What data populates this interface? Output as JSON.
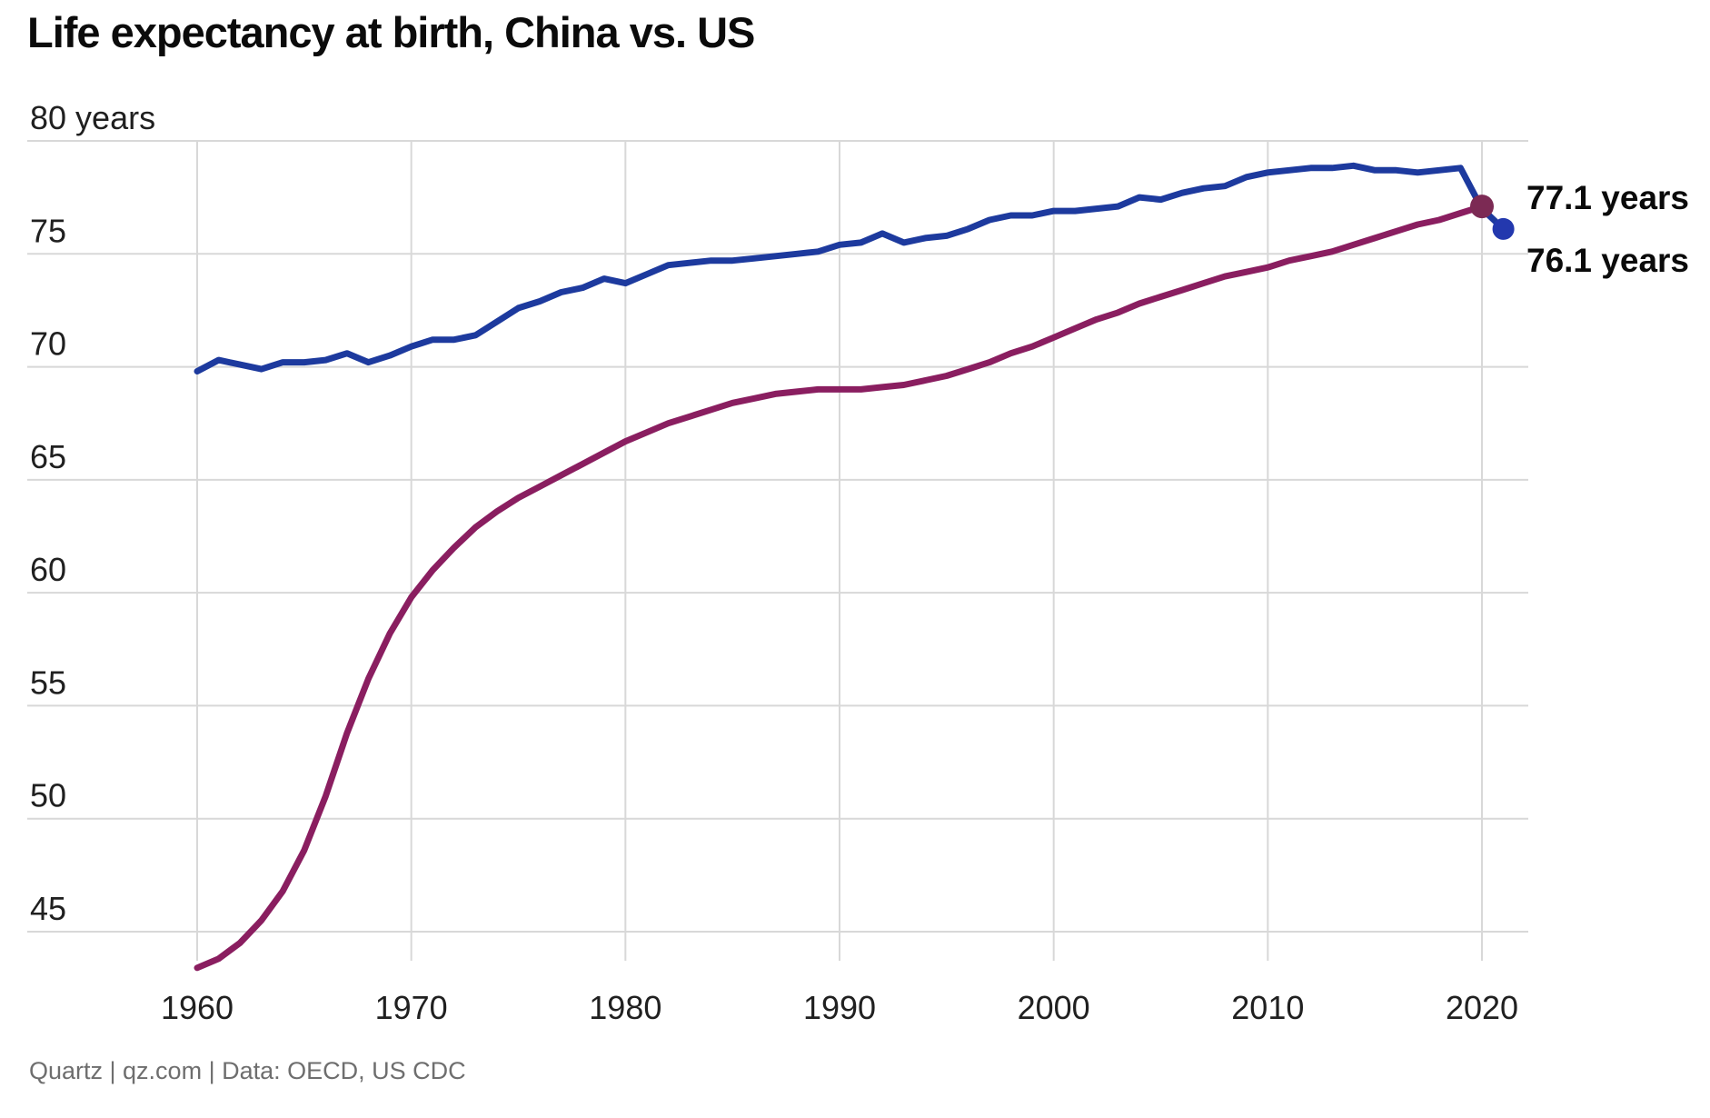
{
  "title": "Life expectancy at birth, China vs. US",
  "footer": "Quartz | qz.com | Data: OECD, US CDC",
  "colors": {
    "background": "#ffffff",
    "gridline": "#d8d8d8",
    "title_text": "#0b0b0b",
    "tick_text": "#202020",
    "footer_text": "#6e6e6e",
    "us_line": "#1d3a9e",
    "china_line": "#8a1e60",
    "us_dot": "#2338ae",
    "china_dot": "#7c2a54"
  },
  "chart_data": {
    "type": "line",
    "title": "Life expectancy at birth, China vs. US",
    "xlabel": "",
    "ylabel": "years",
    "y_axis_top_label": "80 years",
    "x_ticks": [
      1960,
      1970,
      1980,
      1990,
      2000,
      2010,
      2020
    ],
    "y_ticks": [
      45,
      50,
      55,
      60,
      65,
      70,
      75,
      80
    ],
    "xlim": [
      1952,
      2022.5
    ],
    "ylim": [
      43.3,
      80
    ],
    "grid": true,
    "legend_position": "none",
    "series": [
      {
        "name": "US",
        "color": "#1d3a9e",
        "dot_color": "#2338ae",
        "dot_radius": 12,
        "end_label": "76.1 years",
        "end_value": 76.1,
        "x": [
          1960,
          1961,
          1962,
          1963,
          1964,
          1965,
          1966,
          1967,
          1968,
          1969,
          1970,
          1971,
          1972,
          1973,
          1974,
          1975,
          1976,
          1977,
          1978,
          1979,
          1980,
          1981,
          1982,
          1983,
          1984,
          1985,
          1986,
          1987,
          1988,
          1989,
          1990,
          1991,
          1992,
          1993,
          1994,
          1995,
          1996,
          1997,
          1998,
          1999,
          2000,
          2001,
          2002,
          2003,
          2004,
          2005,
          2006,
          2007,
          2008,
          2009,
          2010,
          2011,
          2012,
          2013,
          2014,
          2015,
          2016,
          2017,
          2018,
          2019,
          2020,
          2021
        ],
        "values": [
          69.8,
          70.3,
          70.1,
          69.9,
          70.2,
          70.2,
          70.3,
          70.6,
          70.2,
          70.5,
          70.9,
          71.2,
          71.2,
          71.4,
          72.0,
          72.6,
          72.9,
          73.3,
          73.5,
          73.9,
          73.7,
          74.1,
          74.5,
          74.6,
          74.7,
          74.7,
          74.8,
          74.9,
          75.0,
          75.1,
          75.4,
          75.5,
          75.9,
          75.5,
          75.7,
          75.8,
          76.1,
          76.5,
          76.7,
          76.7,
          76.9,
          76.9,
          77.0,
          77.1,
          77.5,
          77.4,
          77.7,
          77.9,
          78.0,
          78.4,
          78.6,
          78.7,
          78.8,
          78.8,
          78.9,
          78.7,
          78.7,
          78.6,
          78.7,
          78.8,
          77.0,
          76.1
        ]
      },
      {
        "name": "China",
        "color": "#8a1e60",
        "dot_color": "#7c2a54",
        "dot_radius": 13,
        "end_label": "77.1 years",
        "end_value": 77.1,
        "x": [
          1960,
          1961,
          1962,
          1963,
          1964,
          1965,
          1966,
          1967,
          1968,
          1969,
          1970,
          1971,
          1972,
          1973,
          1974,
          1975,
          1976,
          1977,
          1978,
          1979,
          1980,
          1981,
          1982,
          1983,
          1984,
          1985,
          1986,
          1987,
          1988,
          1989,
          1990,
          1991,
          1992,
          1993,
          1994,
          1995,
          1996,
          1997,
          1998,
          1999,
          2000,
          2001,
          2002,
          2003,
          2004,
          2005,
          2006,
          2007,
          2008,
          2009,
          2010,
          2011,
          2012,
          2013,
          2014,
          2015,
          2016,
          2017,
          2018,
          2019,
          2020
        ],
        "values": [
          43.4,
          43.8,
          44.5,
          45.5,
          46.8,
          48.6,
          51.0,
          53.8,
          56.2,
          58.2,
          59.8,
          61.0,
          62.0,
          62.9,
          63.6,
          64.2,
          64.7,
          65.2,
          65.7,
          66.2,
          66.7,
          67.1,
          67.5,
          67.8,
          68.1,
          68.4,
          68.6,
          68.8,
          68.9,
          69.0,
          69.0,
          69.0,
          69.1,
          69.2,
          69.4,
          69.6,
          69.9,
          70.2,
          70.6,
          70.9,
          71.3,
          71.7,
          72.1,
          72.4,
          72.8,
          73.1,
          73.4,
          73.7,
          74.0,
          74.2,
          74.4,
          74.7,
          74.9,
          75.1,
          75.4,
          75.7,
          76.0,
          76.3,
          76.5,
          76.8,
          77.1
        ]
      }
    ]
  }
}
